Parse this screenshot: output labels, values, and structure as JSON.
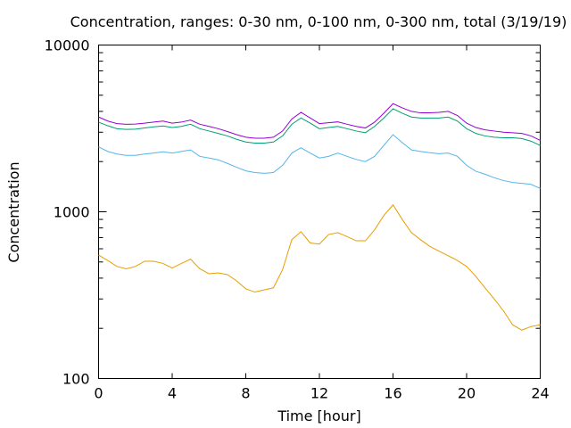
{
  "chart_data": {
    "type": "line",
    "title": "Concentration, ranges: 0-30 nm, 0-100 nm, 0-300 nm, total (3/19/19)",
    "xlabel": "Time [hour]",
    "ylabel": "Concentration",
    "x_ticks": [
      "0",
      "4",
      "8",
      "12",
      "16",
      "20",
      "24"
    ],
    "y_ticks": [
      "100",
      "1000",
      "10000"
    ],
    "xlim": [
      0,
      24
    ],
    "ylim": [
      100,
      10000
    ],
    "y_scale": "log",
    "grid": false,
    "legend": "none",
    "x": [
      0,
      0.5,
      1,
      1.5,
      2,
      2.5,
      3,
      3.5,
      4,
      4.5,
      5,
      5.5,
      6,
      6.5,
      7,
      7.5,
      8,
      8.5,
      9,
      9.5,
      10,
      10.5,
      11,
      11.5,
      12,
      12.5,
      13,
      13.5,
      14,
      14.5,
      15,
      15.5,
      16,
      16.5,
      17,
      17.5,
      18,
      18.5,
      19,
      19.5,
      20,
      20.5,
      21,
      21.5,
      22,
      22.5,
      23,
      23.5,
      24
    ],
    "series": [
      {
        "color": "#e69f00",
        "values": [
          550,
          510,
          470,
          455,
          470,
          505,
          505,
          490,
          460,
          490,
          520,
          455,
          425,
          430,
          420,
          385,
          345,
          330,
          340,
          350,
          450,
          680,
          760,
          650,
          640,
          730,
          750,
          710,
          670,
          670,
          780,
          950,
          1100,
          900,
          750,
          680,
          620,
          580,
          545,
          510,
          470,
          410,
          350,
          300,
          255,
          210,
          195,
          205,
          210
        ]
      },
      {
        "color": "#56b4e9",
        "values": [
          2450,
          2300,
          2220,
          2180,
          2180,
          2220,
          2250,
          2290,
          2250,
          2300,
          2350,
          2150,
          2100,
          2050,
          1950,
          1850,
          1760,
          1720,
          1700,
          1720,
          1900,
          2250,
          2420,
          2250,
          2100,
          2150,
          2250,
          2150,
          2060,
          2000,
          2150,
          2500,
          2900,
          2600,
          2350,
          2300,
          2260,
          2230,
          2250,
          2150,
          1900,
          1750,
          1680,
          1600,
          1540,
          1500,
          1480,
          1460,
          1380
        ]
      },
      {
        "color": "#009e73",
        "values": [
          3450,
          3280,
          3150,
          3120,
          3130,
          3180,
          3230,
          3270,
          3200,
          3250,
          3350,
          3150,
          3050,
          2950,
          2850,
          2720,
          2620,
          2580,
          2580,
          2620,
          2850,
          3350,
          3650,
          3400,
          3150,
          3200,
          3250,
          3150,
          3050,
          2980,
          3250,
          3650,
          4150,
          3900,
          3700,
          3650,
          3650,
          3650,
          3700,
          3500,
          3150,
          2950,
          2850,
          2800,
          2780,
          2780,
          2750,
          2650,
          2500
        ]
      },
      {
        "color": "#9400d3",
        "values": [
          3700,
          3500,
          3380,
          3350,
          3360,
          3400,
          3450,
          3500,
          3400,
          3450,
          3550,
          3350,
          3250,
          3150,
          3030,
          2900,
          2800,
          2760,
          2760,
          2800,
          3050,
          3600,
          3950,
          3650,
          3380,
          3420,
          3460,
          3350,
          3250,
          3180,
          3450,
          3900,
          4450,
          4200,
          4000,
          3920,
          3920,
          3950,
          4000,
          3780,
          3400,
          3200,
          3100,
          3050,
          3000,
          2980,
          2950,
          2850,
          2680
        ]
      }
    ]
  }
}
